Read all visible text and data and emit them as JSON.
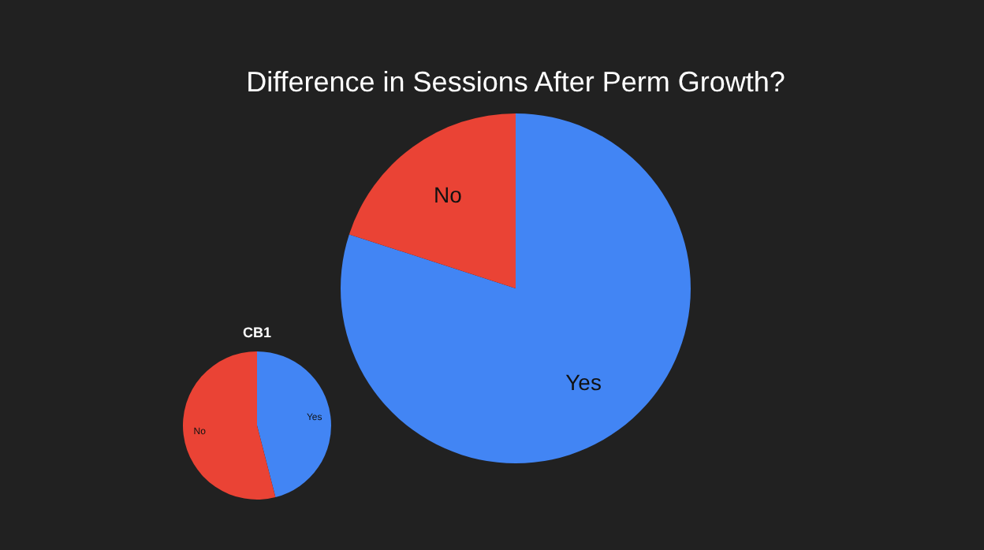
{
  "chart_data": [
    {
      "type": "pie",
      "title": "Difference in Sessions After Perm Growth?",
      "categories": [
        "Yes",
        "No"
      ],
      "values": [
        80,
        20
      ],
      "colors": [
        "#4285f4",
        "#ea4335"
      ]
    },
    {
      "type": "pie",
      "title": "CB1",
      "categories": [
        "Yes",
        "No"
      ],
      "values": [
        46,
        54
      ],
      "colors": [
        "#4285f4",
        "#ea4335"
      ]
    }
  ]
}
